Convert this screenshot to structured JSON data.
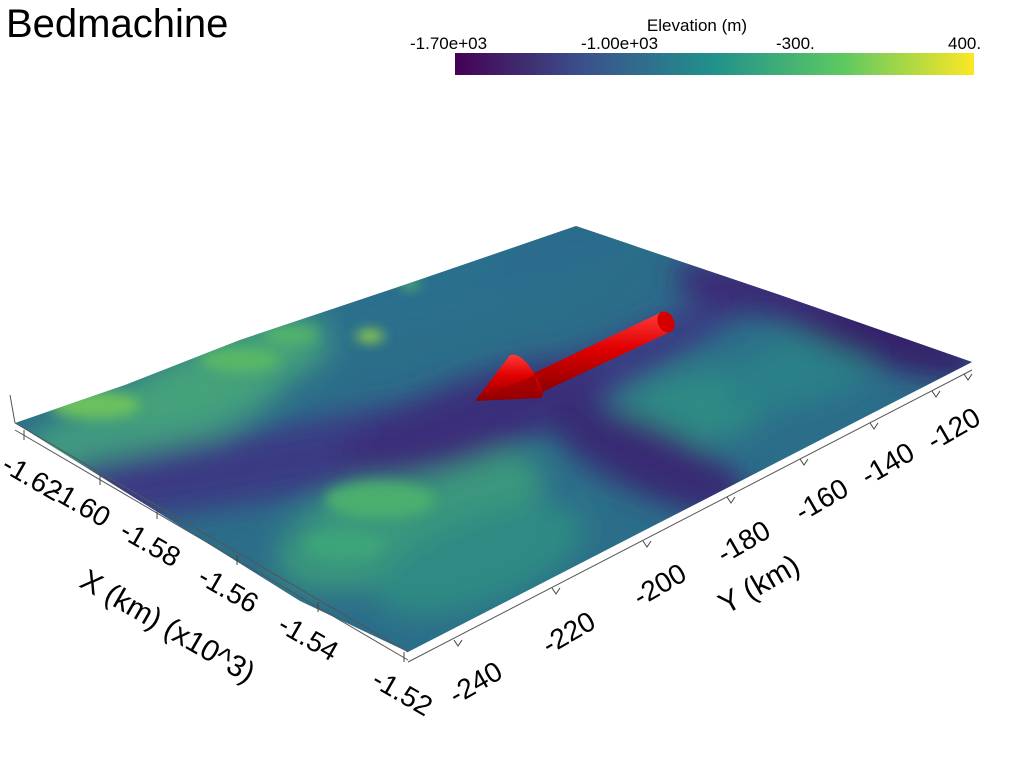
{
  "title": "Bedmachine",
  "colorbar": {
    "title": "Elevation (m)",
    "ticks": [
      "-1.70e+03",
      "-1.00e+03",
      "-300.",
      "400."
    ],
    "range": [
      -1700,
      400
    ],
    "colormap": "viridis",
    "colors": [
      "#440154",
      "#3b528b",
      "#21918c",
      "#5ec962",
      "#fde725"
    ]
  },
  "x_axis": {
    "label": "X (km) (x10^3)",
    "ticks": [
      "-1.62",
      "-1.60",
      "-1.58",
      "-1.56",
      "-1.54",
      "-1.52"
    ]
  },
  "y_axis": {
    "label": "Y (km)",
    "ticks": [
      "-240",
      "-220",
      "-200",
      "-180",
      "-160",
      "-140",
      "-120"
    ]
  },
  "arrow": {
    "color": "#e00000",
    "semantic": "flow-direction-arrow"
  }
}
